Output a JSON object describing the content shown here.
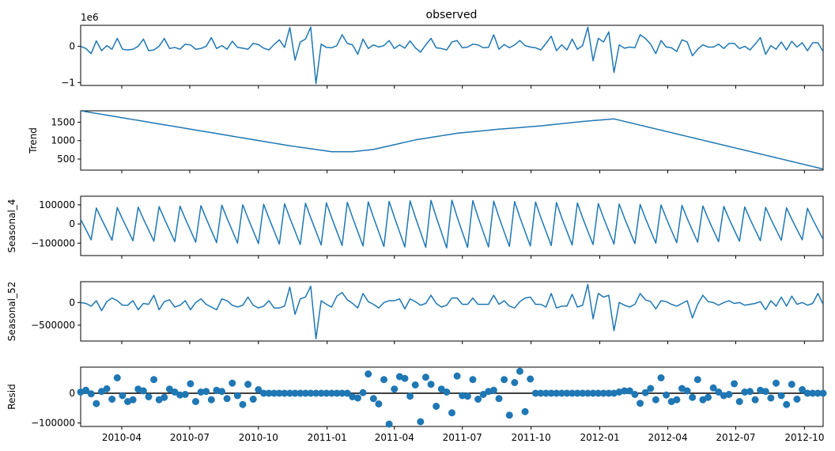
{
  "chart_data": {
    "type": "line",
    "title": "observed",
    "x_ticks": [
      "2010-04",
      "2010-07",
      "2010-10",
      "2011-01",
      "2011-04",
      "2011-07",
      "2011-10",
      "2012-01",
      "2012-04",
      "2012-07",
      "2012-10"
    ],
    "xlim": [
      "2010-02-05",
      "2012-10-26"
    ],
    "color": "#1f77b4",
    "panels": [
      {
        "name": "observed",
        "type": "line",
        "ylabel": "",
        "offset_label": "1e6",
        "ylim": [
          -1080000,
          580000
        ],
        "yticks": [
          -1,
          0
        ],
        "ytick_labels": [
          "−1",
          "0"
        ],
        "values": [
          0,
          -60000,
          -200000,
          150000,
          -120000,
          20000,
          -80000,
          220000,
          -80000,
          -100000,
          -80000,
          0,
          200000,
          -120000,
          -100000,
          0,
          220000,
          -60000,
          -30000,
          -80000,
          60000,
          40000,
          -80000,
          -60000,
          0,
          240000,
          -60000,
          20000,
          -80000,
          140000,
          -30000,
          -50000,
          -80000,
          80000,
          50000,
          -50000,
          -100000,
          50000,
          180000,
          -30000,
          520000,
          -380000,
          120000,
          200000,
          530000,
          -1030000,
          60000,
          -30000,
          -40000,
          20000,
          320000,
          80000,
          40000,
          -220000,
          200000,
          -60000,
          40000,
          -20000,
          20000,
          160000,
          -60000,
          40000,
          -50000,
          150000,
          -40000,
          -160000,
          40000,
          220000,
          -40000,
          -60000,
          -100000,
          120000,
          160000,
          -40000,
          -20000,
          60000,
          40000,
          -40000,
          -30000,
          320000,
          -80000,
          50000,
          -40000,
          40000,
          160000,
          20000,
          -20000,
          -40000,
          -100000,
          80000,
          280000,
          -120000,
          40000,
          -100000,
          200000,
          -80000,
          20000,
          530000,
          -400000,
          220000,
          120000,
          400000,
          -720000,
          40000,
          -50000,
          -20000,
          -40000,
          320000,
          220000,
          60000,
          -200000,
          160000,
          -20000,
          -40000,
          -140000,
          180000,
          120000,
          -260000,
          -80000,
          40000,
          -20000,
          -20000,
          60000,
          -60000,
          80000,
          80000,
          -60000,
          0,
          -100000,
          60000,
          240000,
          -220000,
          20000,
          -80000,
          120000,
          -100000,
          140000,
          -20000,
          100000,
          -120000,
          100000,
          100000,
          -140000,
          20000,
          -60000,
          260000,
          -100000,
          -60000,
          0
        ]
      },
      {
        "name": "trend",
        "type": "line",
        "ylabel": "Trend",
        "ylim": [
          200,
          1810
        ],
        "yticks": [
          500,
          1000,
          1500
        ],
        "ytick_labels": [
          "500",
          "1000",
          "1500"
        ],
        "knots": [
          {
            "x": 0,
            "y": 1810
          },
          {
            "x": 40,
            "y": 860
          },
          {
            "x": 48,
            "y": 700
          },
          {
            "x": 52,
            "y": 700
          },
          {
            "x": 56,
            "y": 760
          },
          {
            "x": 64,
            "y": 1020
          },
          {
            "x": 72,
            "y": 1200
          },
          {
            "x": 80,
            "y": 1310
          },
          {
            "x": 88,
            "y": 1400
          },
          {
            "x": 96,
            "y": 1520
          },
          {
            "x": 102,
            "y": 1590
          },
          {
            "x": 142,
            "y": 230
          }
        ]
      },
      {
        "name": "seasonal_4",
        "type": "line",
        "ylabel": "Seasonal_4",
        "ylim": [
          -165000,
          145000
        ],
        "yticks": [
          -100000,
          0,
          100000
        ],
        "ytick_labels": [
          "−100000",
          "0",
          "100000"
        ]
      },
      {
        "name": "seasonal_52",
        "type": "line",
        "ylabel": "Seasonal_52",
        "ylim": [
          -850000,
          460000
        ],
        "yticks": [
          -500000,
          0
        ],
        "ytick_labels": [
          "−500000",
          "0"
        ],
        "values": [
          0,
          -20000,
          -80000,
          40000,
          -180000,
          20000,
          100000,
          40000,
          -60000,
          -60000,
          40000,
          -160000,
          -20000,
          -40000,
          160000,
          -160000,
          20000,
          60000,
          -100000,
          -60000,
          40000,
          -160000,
          0,
          80000,
          -40000,
          -100000,
          -160000,
          80000,
          40000,
          -60000,
          -100000,
          -60000,
          120000,
          -60000,
          -120000,
          -80000,
          40000,
          -120000,
          -120000,
          -80000,
          340000,
          -260000,
          80000,
          120000,
          360000,
          -800000,
          40000,
          -40000,
          -100000,
          140000,
          220000,
          60000,
          -20000,
          -120000,
          200000,
          20000,
          -40000,
          -120000,
          0,
          40000,
          40000,
          80000,
          -140000,
          80000,
          20000,
          -60000,
          -20000,
          160000,
          -20000,
          -100000,
          -60000,
          100000,
          100000,
          -40000,
          -40000,
          100000,
          -40000,
          -40000,
          -40000,
          160000,
          -40000,
          40000,
          -80000,
          -120000,
          20000,
          100000,
          120000,
          -40000,
          -40000,
          -100000,
          200000,
          -120000,
          -80000,
          -80000,
          180000,
          -100000,
          -60000,
          400000,
          -360000,
          200000,
          120000,
          160000,
          -620000,
          0,
          -60000,
          -100000,
          -40000,
          200000,
          60000,
          20000,
          -140000,
          40000,
          20000,
          -40000,
          -80000,
          -20000,
          40000,
          -340000,
          -40000,
          160000,
          20000,
          0,
          -60000,
          0,
          40000,
          -20000,
          0,
          -60000,
          -40000,
          -20000,
          20000,
          -160000,
          40000,
          -80000,
          120000,
          -80000,
          140000,
          -40000,
          0,
          -60000,
          -20000,
          200000,
          -40000,
          20000,
          -120000
        ]
      },
      {
        "name": "resid",
        "type": "scatter",
        "ylabel": "Resid",
        "ylim": [
          -112000,
          88000
        ],
        "yticks": [
          -100000,
          0
        ],
        "ytick_labels": [
          "−100000",
          "0"
        ],
        "zero_line": true,
        "values": [
          4000,
          10000,
          -2000,
          -35000,
          6000,
          15000,
          -20000,
          52000,
          -8000,
          -28000,
          -22000,
          14000,
          8000,
          -12000,
          46000,
          -22000,
          -14000,
          14000,
          4000,
          -6000,
          -4000,
          32000,
          -28000,
          4000,
          6000,
          -22000,
          10000,
          6000,
          -18000,
          34000,
          -8000,
          -38000,
          30000,
          -20000,
          12000,
          0,
          0,
          0,
          0,
          0,
          0,
          0,
          0,
          0,
          0,
          0,
          0,
          0,
          0,
          0,
          0,
          0,
          -12000,
          -16000,
          2000,
          65000,
          -18000,
          -36000,
          46000,
          -104000,
          14000,
          56000,
          50000,
          -10000,
          28000,
          -96000,
          54000,
          30000,
          -44000,
          14000,
          4000,
          -66000,
          58000,
          -8000,
          -10000,
          46000,
          -20000,
          -4000,
          6000,
          10000,
          -18000,
          46000,
          -74000,
          36000,
          74000,
          -62000,
          48000,
          0,
          0,
          0,
          0,
          0,
          0,
          0,
          0,
          0,
          0,
          0,
          0,
          0,
          0,
          0,
          0,
          4000,
          8000,
          8000,
          -4000,
          -34000,
          2000,
          16000,
          -22000,
          52000,
          -6000,
          -28000,
          -22000,
          16000,
          8000,
          -14000,
          46000,
          -22000,
          -14000,
          18000,
          4000,
          -8000,
          -4000,
          32000,
          -28000,
          4000,
          6000,
          -22000,
          10000,
          6000,
          -16000,
          34000,
          -8000,
          -38000,
          30000,
          -20000,
          12000
        ]
      }
    ]
  }
}
